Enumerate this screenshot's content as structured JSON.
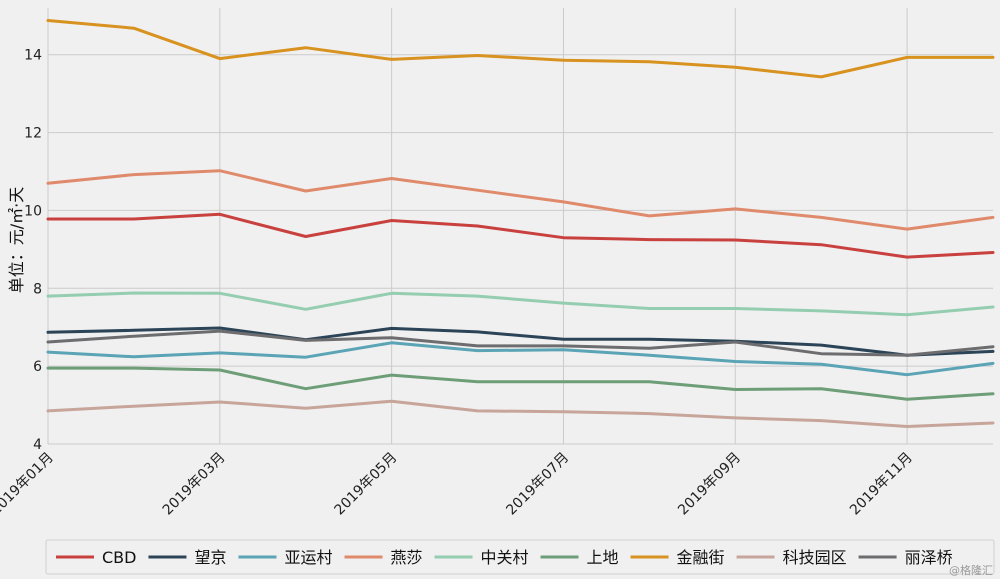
{
  "chart_data": {
    "type": "line",
    "ylabel": "单位：元/㎡·天",
    "ylim": [
      4,
      15.2
    ],
    "yticks": [
      4,
      6,
      8,
      10,
      12,
      14
    ],
    "x": [
      "2019年01月",
      "2019年02月",
      "2019年03月",
      "2019年04月",
      "2019年05月",
      "2019年06月",
      "2019年07月",
      "2019年08月",
      "2019年09月",
      "2019年10月",
      "2019年11月",
      "2019年12月"
    ],
    "xticks": [
      "2019年01月",
      "2019年03月",
      "2019年05月",
      "2019年07月",
      "2019年09月",
      "2019年11月"
    ],
    "grid": true,
    "legend": "bottom",
    "series": [
      {
        "name": "CBD",
        "color": "#c8413e",
        "values": [
          9.78,
          9.78,
          9.9,
          9.33,
          9.74,
          9.6,
          9.3,
          9.25,
          9.24,
          9.12,
          8.8,
          8.92
        ]
      },
      {
        "name": "望京",
        "color": "#2c4457",
        "values": [
          6.87,
          6.92,
          6.98,
          6.68,
          6.97,
          6.88,
          6.69,
          6.69,
          6.64,
          6.54,
          6.28,
          6.38
        ]
      },
      {
        "name": "亚运村",
        "color": "#5aa4b5",
        "values": [
          6.36,
          6.24,
          6.34,
          6.23,
          6.6,
          6.4,
          6.42,
          6.28,
          6.12,
          6.05,
          5.78,
          6.07
        ]
      },
      {
        "name": "燕莎",
        "color": "#e08a6c",
        "values": [
          10.7,
          10.92,
          11.02,
          10.5,
          10.82,
          10.52,
          10.22,
          9.86,
          10.04,
          9.82,
          9.52,
          9.82
        ]
      },
      {
        "name": "中关村",
        "color": "#95cdb0",
        "values": [
          7.8,
          7.88,
          7.87,
          7.46,
          7.87,
          7.8,
          7.62,
          7.48,
          7.48,
          7.42,
          7.32,
          7.52
        ]
      },
      {
        "name": "上地",
        "color": "#6d9e78",
        "values": [
          5.95,
          5.95,
          5.9,
          5.42,
          5.77,
          5.6,
          5.6,
          5.6,
          5.4,
          5.42,
          5.15,
          5.29
        ]
      },
      {
        "name": "金融街",
        "color": "#d8921f",
        "values": [
          14.88,
          14.68,
          13.9,
          14.18,
          13.88,
          13.98,
          13.86,
          13.82,
          13.68,
          13.43,
          13.93,
          13.93
        ]
      },
      {
        "name": "科技园区",
        "color": "#c7a59b",
        "values": [
          4.85,
          4.97,
          5.08,
          4.92,
          5.1,
          4.85,
          4.83,
          4.78,
          4.67,
          4.6,
          4.45,
          4.54
        ]
      },
      {
        "name": "丽泽桥",
        "color": "#6d6d70",
        "values": [
          6.62,
          6.77,
          6.9,
          6.66,
          6.73,
          6.52,
          6.52,
          6.46,
          6.62,
          6.32,
          6.28,
          6.5
        ]
      }
    ]
  },
  "watermark": "@格隆汇"
}
